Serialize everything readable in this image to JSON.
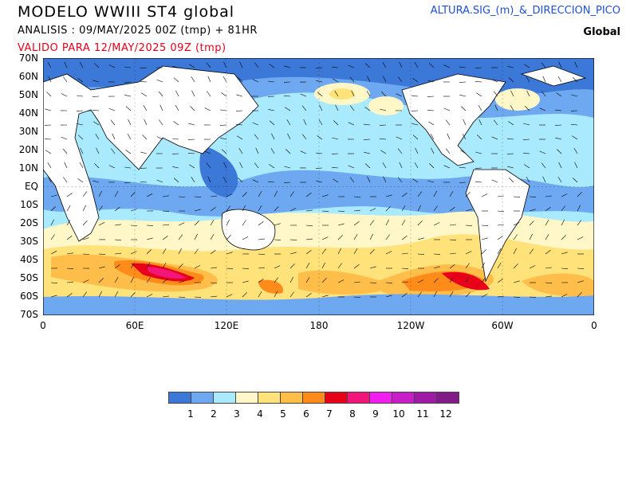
{
  "header": {
    "title": "MODELO  WWIII  ST4  global",
    "analysis": "ANALISIS : 09/MAY/2025 00Z  (tmp) + 81HR",
    "valid": "VALIDO PARA  12/MAY/2025 09Z  (tmp)",
    "parameter": "ALTURA.SIG_(m)_&_DIRECCION_PICO",
    "region": "Global"
  },
  "axes": {
    "lat_labels": [
      "70N",
      "60N",
      "50N",
      "40N",
      "30N",
      "20N",
      "10N",
      "EQ",
      "10S",
      "20S",
      "30S",
      "40S",
      "50S",
      "60S",
      "70S"
    ],
    "lon_labels": [
      "0",
      "60E",
      "120E",
      "180",
      "120W",
      "60W",
      "0"
    ]
  },
  "legend": {
    "colors": [
      "#3c78d8",
      "#6ea8f0",
      "#aaeaff",
      "#fff7c8",
      "#ffe37a",
      "#ffbd4a",
      "#ff8c1a",
      "#e8001a",
      "#f2157a",
      "#f21ef0",
      "#c81ec8",
      "#a01aa8",
      "#821a8a"
    ],
    "labels": [
      "1",
      "2",
      "3",
      "4",
      "5",
      "6",
      "7",
      "8",
      "9",
      "10",
      "11",
      "12"
    ]
  },
  "map": {
    "field": "significant wave height (m) with peak direction arrows",
    "land_color": "#ffffff",
    "coast_color": "#000000"
  }
}
